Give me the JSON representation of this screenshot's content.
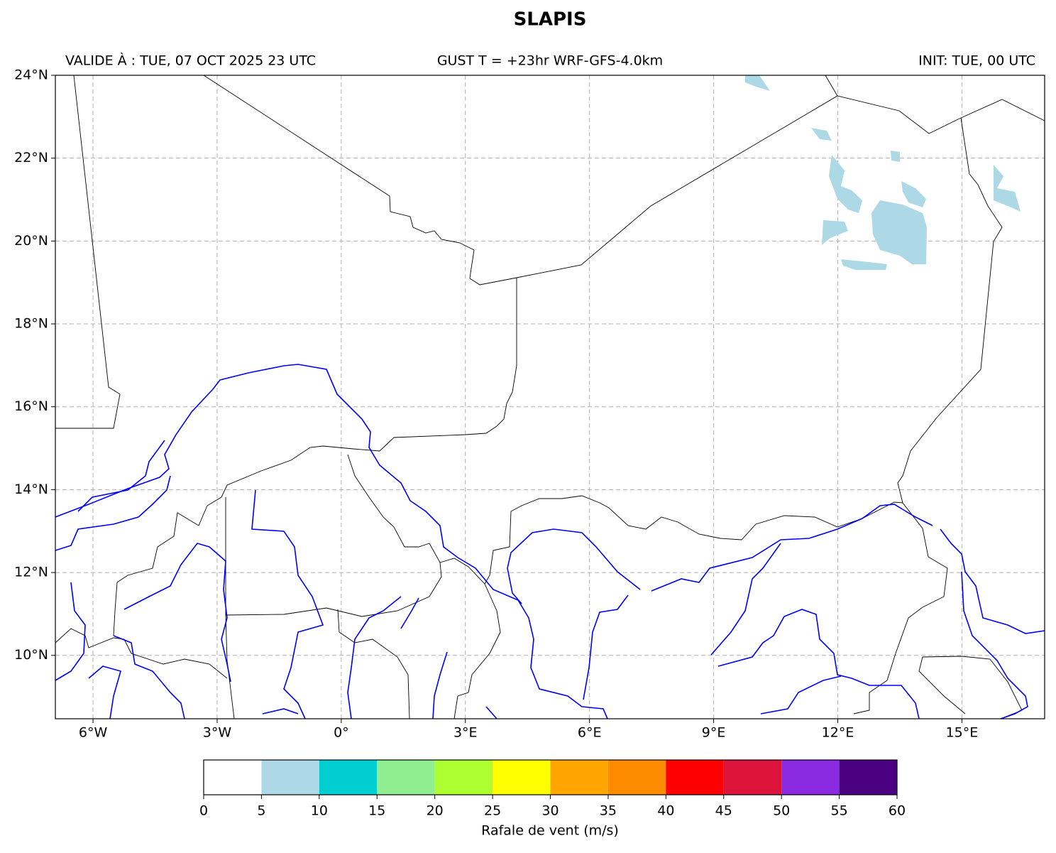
{
  "title": "SLAPIS",
  "header": {
    "left": "VALIDE À : TUE, 07 OCT 2025 23 UTC",
    "center": "GUST T = +23hr WRF-GFS-4.0km",
    "right": "INIT: TUE, 00 UTC"
  },
  "map": {
    "xlim": [
      -6.91,
      17.0
    ],
    "ylim": [
      8.47,
      24
    ],
    "xticks": [
      {
        "value": -6,
        "label": "6°W"
      },
      {
        "value": -3,
        "label": "3°W"
      },
      {
        "value": 0,
        "label": "0°"
      },
      {
        "value": 3,
        "label": "3°E"
      },
      {
        "value": 6,
        "label": "6°E"
      },
      {
        "value": 9,
        "label": "9°E"
      },
      {
        "value": 12,
        "label": "12°E"
      },
      {
        "value": 15,
        "label": "15°E"
      }
    ],
    "yticks": [
      {
        "value": 10,
        "label": "10°N"
      },
      {
        "value": 12,
        "label": "12°N"
      },
      {
        "value": 14,
        "label": "14°N"
      },
      {
        "value": 16,
        "label": "16°N"
      },
      {
        "value": 18,
        "label": "18°N"
      },
      {
        "value": 20,
        "label": "20°N"
      },
      {
        "value": 22,
        "label": "22°N"
      },
      {
        "value": 24,
        "label": "24°N"
      }
    ],
    "grid": true
  },
  "colorbar": {
    "label": "Rafale de vent (m/s)",
    "ticks": [
      0,
      5,
      10,
      15,
      20,
      25,
      30,
      35,
      40,
      45,
      50,
      55,
      60
    ],
    "colors": [
      "#ffffff",
      "#add8e6",
      "#00ced1",
      "#90ee90",
      "#adff2f",
      "#ffff00",
      "#ffa500",
      "#ff8c00",
      "#ff0000",
      "#dc143c",
      "#8a2be2",
      "#4b0082"
    ]
  }
}
